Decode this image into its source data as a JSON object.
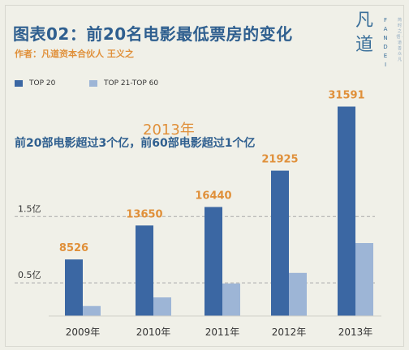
{
  "title": "图表02：前20名电影最低票房的变化",
  "author": "作者：凡道资本合伙人 王义之",
  "logo": {
    "char_top": "凡",
    "char_bottom": "道",
    "latin": [
      "F",
      "A",
      "N",
      "D",
      "E",
      "I"
    ],
    "tagline": "简时之悟 · 道善众凡"
  },
  "headline": "前20部电影超过3个亿，前60部电影超过1个亿",
  "highlight_year": "2013年",
  "colors": {
    "top20": "#3b67a3",
    "top21_60": "#9db5d6",
    "value_label": "#e0903a",
    "gridline": "#aaaaaa"
  },
  "chart_data": {
    "type": "bar",
    "categories": [
      "2009年",
      "2010年",
      "2011年",
      "2012年",
      "2013年"
    ],
    "series": [
      {
        "name": "TOP 20",
        "values": [
          8526,
          13650,
          16440,
          21925,
          31591
        ]
      },
      {
        "name": "TOP 21-TOP 60",
        "values": [
          1500,
          2800,
          4900,
          6500,
          11000
        ]
      }
    ],
    "data_labels": [
      "8526",
      "13650",
      "16440",
      "21925",
      "31591"
    ],
    "reference_lines": [
      {
        "value": 15000,
        "label": "1.5亿"
      },
      {
        "value": 5000,
        "label": "0.5亿"
      }
    ],
    "ylim": [
      0,
      33000
    ],
    "legend_position": "top-left",
    "grid": false
  }
}
